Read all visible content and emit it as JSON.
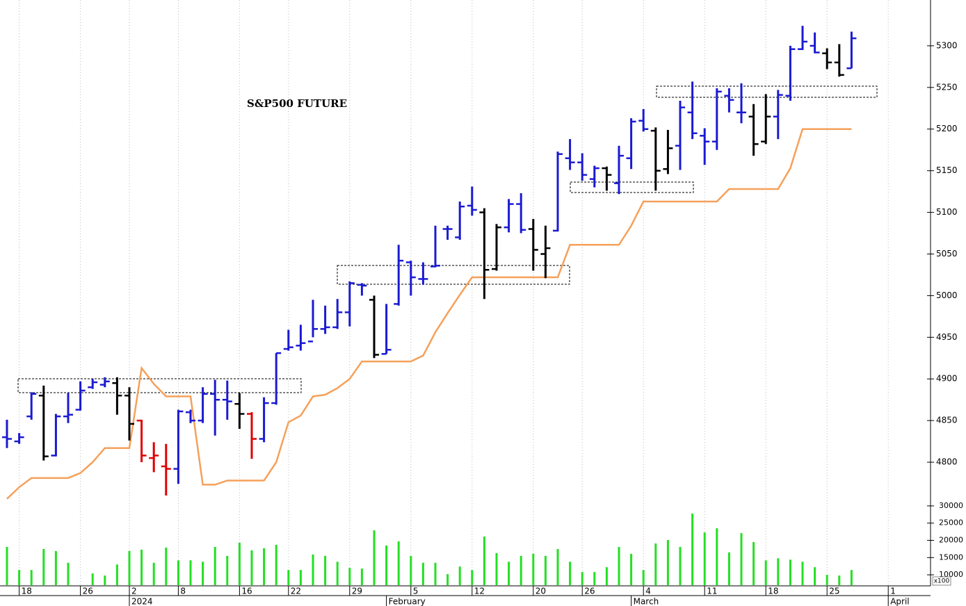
{
  "chart_data": {
    "type": "ohlc",
    "title": "S&P500 FUTURE",
    "categories": [
      null,
      "18",
      null,
      null,
      null,
      null,
      "26",
      null,
      null,
      null,
      "2",
      null,
      null,
      null,
      "8",
      null,
      null,
      null,
      null,
      "16",
      null,
      null,
      null,
      "22",
      null,
      null,
      null,
      null,
      "29",
      null,
      null,
      null,
      null,
      "5",
      null,
      null,
      null,
      null,
      "12",
      null,
      null,
      null,
      null,
      "20",
      null,
      null,
      null,
      "26",
      null,
      null,
      null,
      null,
      "4",
      null,
      null,
      null,
      null,
      "11",
      null,
      null,
      null,
      null,
      "18",
      null,
      null,
      null,
      null,
      "25",
      null,
      null,
      null,
      null,
      "1"
    ],
    "months": [
      null,
      null,
      null,
      null,
      null,
      null,
      null,
      null,
      null,
      null,
      "2024",
      null,
      null,
      null,
      null,
      null,
      null,
      null,
      null,
      null,
      null,
      null,
      null,
      null,
      null,
      null,
      null,
      null,
      null,
      null,
      null,
      "February",
      null,
      null,
      null,
      null,
      null,
      null,
      null,
      null,
      null,
      null,
      null,
      null,
      null,
      null,
      null,
      null,
      null,
      null,
      null,
      "March",
      null,
      null,
      null,
      null,
      null,
      null,
      null,
      null,
      null,
      null,
      null,
      null,
      null,
      null,
      null,
      null,
      null,
      null,
      null,
      null,
      "April"
    ],
    "open": [
      4830,
      4825,
      4855,
      4880,
      4808,
      4855,
      4863,
      4890,
      4893,
      4895,
      4880,
      4850,
      4805,
      4795,
      4792,
      4860,
      4850,
      4882,
      4875,
      4870,
      4858,
      4828,
      4871,
      4936,
      4940,
      4945,
      4960,
      4962,
      4980,
      5013,
      4995,
      4930,
      4990,
      5040,
      5020,
      5035,
      5080,
      5070,
      5108,
      5100,
      5032,
      5082,
      5110,
      5080,
      5050,
      5078,
      5165,
      5160,
      5140,
      5153,
      5135,
      5165,
      5210,
      5198,
      5152,
      5180,
      5220,
      5192,
      5185,
      5240,
      5220,
      5215,
      5185,
      5215,
      5240,
      5296,
      5300,
      5291,
      5280,
      5273,
      null,
      null,
      null
    ],
    "high": [
      4851,
      4835,
      4884,
      4892,
      4858,
      4883,
      4897,
      4900,
      4902,
      4902,
      4890,
      4851,
      4824,
      4822,
      4863,
      4863,
      4890,
      4899,
      4898,
      4883,
      4860,
      4878,
      4931,
      4959,
      4965,
      4995,
      4988,
      4996,
      5017,
      5015,
      5000,
      4990,
      5061,
      5042,
      5040,
      5084,
      5084,
      5113,
      5131,
      5105,
      5086,
      5116,
      5123,
      5092,
      5084,
      5173,
      5188,
      5171,
      5156,
      5155,
      5180,
      5213,
      5224,
      5202,
      5199,
      5234,
      5257,
      5201,
      5249,
      5249,
      5255,
      5230,
      5242,
      5247,
      5300,
      5324,
      5316,
      5297,
      5302,
      5317,
      null,
      null,
      null
    ],
    "low": [
      4817,
      4822,
      4851,
      4802,
      4807,
      4847,
      4862,
      4888,
      4890,
      4857,
      4826,
      4800,
      4788,
      4760,
      4774,
      4847,
      4847,
      4832,
      4851,
      4840,
      4804,
      4824,
      4869,
      4934,
      4934,
      4950,
      4954,
      4960,
      4963,
      5000,
      4925,
      4930,
      4988,
      5000,
      5013,
      5034,
      5067,
      5067,
      5096,
      4996,
      5030,
      5076,
      5075,
      5030,
      5021,
      5077,
      5151,
      5138,
      5130,
      5126,
      5122,
      5152,
      5197,
      5126,
      5146,
      5151,
      5188,
      5157,
      5175,
      5220,
      5207,
      5168,
      5182,
      5188,
      5234,
      5295,
      5291,
      5272,
      5263,
      5273,
      null,
      null,
      null
    ],
    "close": [
      4828,
      4830,
      4882,
      4807,
      4855,
      4857,
      4886,
      4896,
      4897,
      4880,
      4846,
      4808,
      4808,
      4792,
      4861,
      4850,
      4882,
      4875,
      4873,
      4858,
      4828,
      4871,
      4931,
      4938,
      4943,
      4960,
      4962,
      4980,
      5015,
      5012,
      4929,
      4935,
      5042,
      5022,
      5020,
      5036,
      5080,
      5107,
      5103,
      5031,
      5082,
      5110,
      5079,
      5055,
      5057,
      5170,
      5160,
      5145,
      5153,
      5145,
      5168,
      5209,
      5200,
      5150,
      5177,
      5226,
      5195,
      5185,
      5245,
      5235,
      5220,
      5182,
      5215,
      5241,
      5296,
      5305,
      5292,
      5280,
      5265,
      5309,
      null,
      null,
      null
    ],
    "colors": [
      "#1a1ad2",
      "#1a1ad2",
      "#1a1ad2",
      "#000000",
      "#1a1ad2",
      "#1a1ad2",
      "#1a1ad2",
      "#1a1ad2",
      "#1a1ad2",
      "#000000",
      "#000000",
      "#e00000",
      "#e00000",
      "#e00000",
      "#1a1ad2",
      "#1a1ad2",
      "#1a1ad2",
      "#1a1ad2",
      "#1a1ad2",
      "#000000",
      "#e00000",
      "#1a1ad2",
      "#1a1ad2",
      "#1a1ad2",
      "#1a1ad2",
      "#1a1ad2",
      "#1a1ad2",
      "#1a1ad2",
      "#1a1ad2",
      "#1a1ad2",
      "#000000",
      "#1a1ad2",
      "#1a1ad2",
      "#1a1ad2",
      "#1a1ad2",
      "#1a1ad2",
      "#1a1ad2",
      "#1a1ad2",
      "#1a1ad2",
      "#000000",
      "#000000",
      "#1a1ad2",
      "#1a1ad2",
      "#000000",
      "#000000",
      "#1a1ad2",
      "#1a1ad2",
      "#1a1ad2",
      "#1a1ad2",
      "#000000",
      "#1a1ad2",
      "#1a1ad2",
      "#1a1ad2",
      "#000000",
      "#000000",
      "#1a1ad2",
      "#1a1ad2",
      "#1a1ad2",
      "#1a1ad2",
      "#1a1ad2",
      "#1a1ad2",
      "#000000",
      "#000000",
      "#1a1ad2",
      "#1a1ad2",
      "#1a1ad2",
      "#1a1ad2",
      "#000000",
      "#000000",
      "#1a1ad2",
      null,
      null,
      null
    ],
    "stop_line": {
      "color": "#f5a05a",
      "values": [
        4756,
        4770,
        4781,
        4781,
        4781,
        4781,
        4787,
        4800,
        4817,
        4817,
        4817,
        4913,
        4894,
        4879,
        4879,
        4879,
        4773,
        4773,
        4778,
        4778,
        4778,
        4778,
        4800,
        4848,
        4856,
        4879,
        4881,
        4889,
        4900,
        4921,
        4921,
        4921,
        4921,
        4921,
        4928,
        4956,
        4979,
        5001,
        5022,
        5022,
        5022,
        5022,
        5022,
        5022,
        5022,
        5022,
        5061,
        5061,
        5061,
        5061,
        5061,
        5084,
        5113,
        5113,
        5113,
        5113,
        5113,
        5113,
        5113,
        5128,
        5128,
        5128,
        5128,
        5128,
        5153,
        5200,
        5200,
        5200,
        5200,
        5200,
        null,
        null,
        null
      ]
    },
    "ylim": [
      4755,
      5355
    ],
    "yticks": [
      4800,
      4850,
      4900,
      4950,
      5000,
      5050,
      5100,
      5150,
      5200,
      5250,
      5300
    ],
    "grid": true,
    "volume": {
      "color": "#22e022",
      "unit_label": "x100",
      "ylim": [
        7000,
        31600
      ],
      "yticks": [
        10000,
        15000,
        20000,
        25000,
        30000
      ],
      "values": [
        18100,
        11400,
        11400,
        17500,
        16900,
        13500,
        null,
        10400,
        9800,
        13000,
        16900,
        17300,
        13500,
        17900,
        14200,
        14200,
        13800,
        18100,
        15500,
        19300,
        17100,
        17700,
        18700,
        11400,
        11400,
        15900,
        15500,
        13800,
        12000,
        11800,
        22900,
        18500,
        19700,
        15500,
        13500,
        13500,
        10200,
        12400,
        11400,
        21100,
        16300,
        13800,
        15500,
        16100,
        15500,
        17500,
        13800,
        10800,
        10800,
        12200,
        18100,
        16100,
        11400,
        19100,
        20100,
        18100,
        27800,
        22300,
        23500,
        16500,
        22100,
        19500,
        14200,
        14800,
        14400,
        13800,
        12200,
        10000,
        9800,
        11400,
        null,
        null,
        null
      ]
    }
  }
}
